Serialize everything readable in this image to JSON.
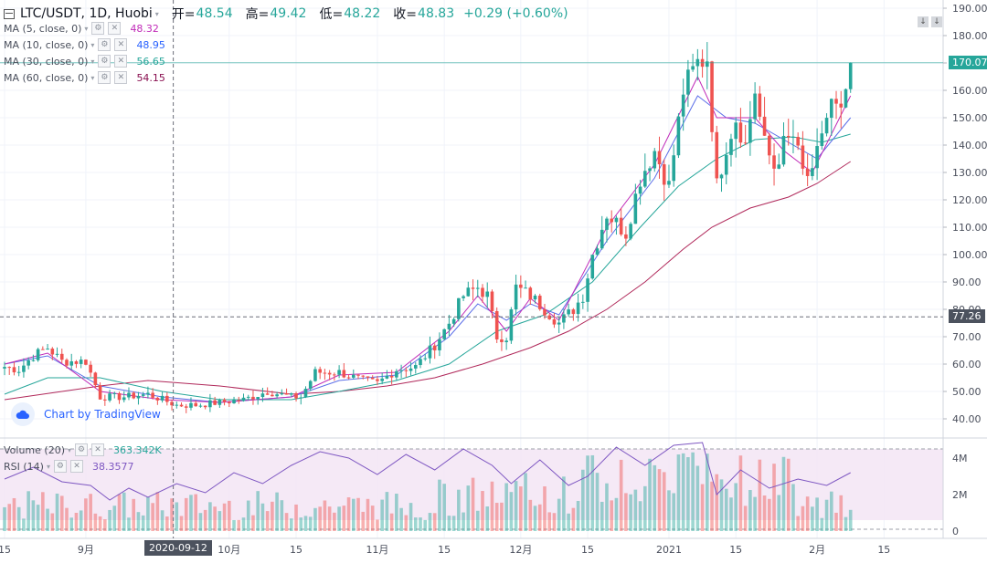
{
  "header": {
    "symbol": "LTC/USDT, 1D, Huobi",
    "open_label": "开=",
    "open_value": "48.54",
    "high_label": "高=",
    "high_value": "49.42",
    "low_label": "低=",
    "low_value": "48.22",
    "close_label": "收=",
    "close_value": "48.83",
    "change": "+0.29 (+0.60%)"
  },
  "indicators": [
    {
      "label": "MA (5, close, 0)",
      "value": "48.32",
      "color": "#c02ab8"
    },
    {
      "label": "MA (10, close, 0)",
      "value": "48.95",
      "color": "#2962ff"
    },
    {
      "label": "MA (30, close, 0)",
      "value": "56.65",
      "color": "#26a69a"
    },
    {
      "label": "MA (60, close, 0)",
      "value": "54.15",
      "color": "#880e4f"
    }
  ],
  "volume_panel": {
    "label": "Volume (20)",
    "value": "363.342K",
    "value_color": "#26a69a"
  },
  "rsi_panel": {
    "label": "RSI (14)",
    "value": "38.3577",
    "value_color": "#7e57c2"
  },
  "watermark": "Chart by TradingView",
  "last_price": "170.07",
  "crosshair_price": "77.26",
  "crosshair_date": "2020-09-12",
  "colors": {
    "up": "#26a69a",
    "down": "#ef5350",
    "ma5": "#c02ab8",
    "ma10": "#5b6ee8",
    "ma30": "#26a69a",
    "ma60": "#b0285a"
  },
  "chart_data": {
    "type": "candlestick",
    "title": "LTC/USDT, 1D, Huobi",
    "y_axis": {
      "ticks": [
        40,
        50,
        60,
        70,
        80,
        90,
        100,
        110,
        120,
        130,
        140,
        150,
        160,
        170,
        180,
        190
      ],
      "range": [
        36,
        193
      ]
    },
    "volume_axis": {
      "ticks": [
        "4M",
        "2M",
        "0"
      ],
      "range": [
        0,
        4.8
      ]
    },
    "x_axis_ticks": [
      {
        "label": "15",
        "index": 0
      },
      {
        "label": "9月",
        "index": 17
      },
      {
        "label": "10月",
        "index": 47
      },
      {
        "label": "15",
        "index": 61
      },
      {
        "label": "11月",
        "index": 78
      },
      {
        "label": "15",
        "index": 92
      },
      {
        "label": "12月",
        "index": 108
      },
      {
        "label": "15",
        "index": 122
      },
      {
        "label": "2021",
        "index": 139
      },
      {
        "label": "15",
        "index": 153
      },
      {
        "label": "2月",
        "index": 170
      },
      {
        "label": "15",
        "index": 184
      }
    ],
    "anchors": [
      [
        0,
        59
      ],
      [
        3,
        58
      ],
      [
        6,
        63
      ],
      [
        9,
        66
      ],
      [
        12,
        61
      ],
      [
        15,
        61
      ],
      [
        17,
        61
      ],
      [
        20,
        48
      ],
      [
        25,
        48
      ],
      [
        30,
        49
      ],
      [
        33,
        47
      ],
      [
        36,
        45
      ],
      [
        40,
        45
      ],
      [
        45,
        46
      ],
      [
        50,
        47
      ],
      [
        55,
        50
      ],
      [
        60,
        48
      ],
      [
        62,
        48
      ],
      [
        65,
        57
      ],
      [
        70,
        57
      ],
      [
        75,
        54
      ],
      [
        78,
        53
      ],
      [
        82,
        58
      ],
      [
        86,
        59
      ],
      [
        90,
        67
      ],
      [
        93,
        75
      ],
      [
        96,
        85
      ],
      [
        99,
        88
      ],
      [
        101,
        85
      ],
      [
        103,
        70
      ],
      [
        105,
        70
      ],
      [
        107,
        88
      ],
      [
        110,
        85
      ],
      [
        113,
        80
      ],
      [
        116,
        75
      ],
      [
        119,
        80
      ],
      [
        121,
        85
      ],
      [
        123,
        100
      ],
      [
        126,
        115
      ],
      [
        130,
        108
      ],
      [
        133,
        128
      ],
      [
        136,
        138
      ],
      [
        139,
        125
      ],
      [
        142,
        160
      ],
      [
        145,
        170
      ],
      [
        147,
        172
      ],
      [
        149,
        125
      ],
      [
        151,
        140
      ],
      [
        153,
        150
      ],
      [
        155,
        140
      ],
      [
        157,
        160
      ],
      [
        159,
        140
      ],
      [
        161,
        132
      ],
      [
        163,
        140
      ],
      [
        165,
        143
      ],
      [
        167,
        130
      ],
      [
        169,
        128
      ],
      [
        171,
        145
      ],
      [
        173,
        155
      ],
      [
        175,
        150
      ],
      [
        176,
        160
      ],
      [
        177,
        170
      ]
    ],
    "ma5": [
      [
        0,
        60
      ],
      [
        9,
        64
      ],
      [
        20,
        50
      ],
      [
        33,
        47
      ],
      [
        45,
        46
      ],
      [
        60,
        48
      ],
      [
        70,
        56
      ],
      [
        82,
        57
      ],
      [
        93,
        72
      ],
      [
        99,
        85
      ],
      [
        105,
        72
      ],
      [
        110,
        84
      ],
      [
        116,
        76
      ],
      [
        126,
        110
      ],
      [
        136,
        133
      ],
      [
        145,
        165
      ],
      [
        149,
        150
      ],
      [
        157,
        150
      ],
      [
        163,
        138
      ],
      [
        169,
        130
      ],
      [
        177,
        158
      ]
    ],
    "ma10": [
      [
        0,
        60
      ],
      [
        9,
        63
      ],
      [
        20,
        52
      ],
      [
        33,
        48
      ],
      [
        45,
        46
      ],
      [
        60,
        48
      ],
      [
        70,
        54
      ],
      [
        82,
        56
      ],
      [
        93,
        70
      ],
      [
        99,
        82
      ],
      [
        105,
        76
      ],
      [
        110,
        82
      ],
      [
        116,
        78
      ],
      [
        126,
        105
      ],
      [
        136,
        128
      ],
      [
        145,
        158
      ],
      [
        151,
        150
      ],
      [
        157,
        148
      ],
      [
        165,
        140
      ],
      [
        170,
        135
      ],
      [
        177,
        150
      ]
    ],
    "ma30": [
      [
        0,
        49
      ],
      [
        9,
        55
      ],
      [
        20,
        55
      ],
      [
        33,
        50
      ],
      [
        45,
        47
      ],
      [
        60,
        47
      ],
      [
        70,
        50
      ],
      [
        82,
        54
      ],
      [
        93,
        60
      ],
      [
        103,
        72
      ],
      [
        113,
        78
      ],
      [
        123,
        90
      ],
      [
        133,
        110
      ],
      [
        141,
        125
      ],
      [
        149,
        135
      ],
      [
        157,
        142
      ],
      [
        165,
        143
      ],
      [
        171,
        141
      ],
      [
        177,
        144
      ]
    ],
    "ma60": [
      [
        0,
        47
      ],
      [
        20,
        52
      ],
      [
        30,
        54
      ],
      [
        45,
        52
      ],
      [
        60,
        49
      ],
      [
        70,
        50
      ],
      [
        80,
        52
      ],
      [
        90,
        55
      ],
      [
        100,
        60
      ],
      [
        110,
        66
      ],
      [
        118,
        72
      ],
      [
        126,
        80
      ],
      [
        134,
        90
      ],
      [
        142,
        102
      ],
      [
        148,
        110
      ],
      [
        156,
        117
      ],
      [
        164,
        121
      ],
      [
        170,
        126
      ],
      [
        177,
        134
      ]
    ],
    "rsi_points": [
      [
        0,
        55
      ],
      [
        6,
        68
      ],
      [
        12,
        52
      ],
      [
        18,
        48
      ],
      [
        22,
        32
      ],
      [
        26,
        45
      ],
      [
        30,
        35
      ],
      [
        36,
        50
      ],
      [
        42,
        40
      ],
      [
        48,
        62
      ],
      [
        54,
        50
      ],
      [
        60,
        70
      ],
      [
        66,
        85
      ],
      [
        72,
        78
      ],
      [
        78,
        60
      ],
      [
        84,
        82
      ],
      [
        90,
        65
      ],
      [
        96,
        88
      ],
      [
        102,
        70
      ],
      [
        106,
        50
      ],
      [
        112,
        76
      ],
      [
        118,
        48
      ],
      [
        122,
        58
      ],
      [
        128,
        90
      ],
      [
        134,
        70
      ],
      [
        140,
        92
      ],
      [
        146,
        95
      ],
      [
        149,
        38
      ],
      [
        154,
        65
      ],
      [
        160,
        45
      ],
      [
        166,
        55
      ],
      [
        172,
        48
      ],
      [
        177,
        62
      ]
    ]
  }
}
